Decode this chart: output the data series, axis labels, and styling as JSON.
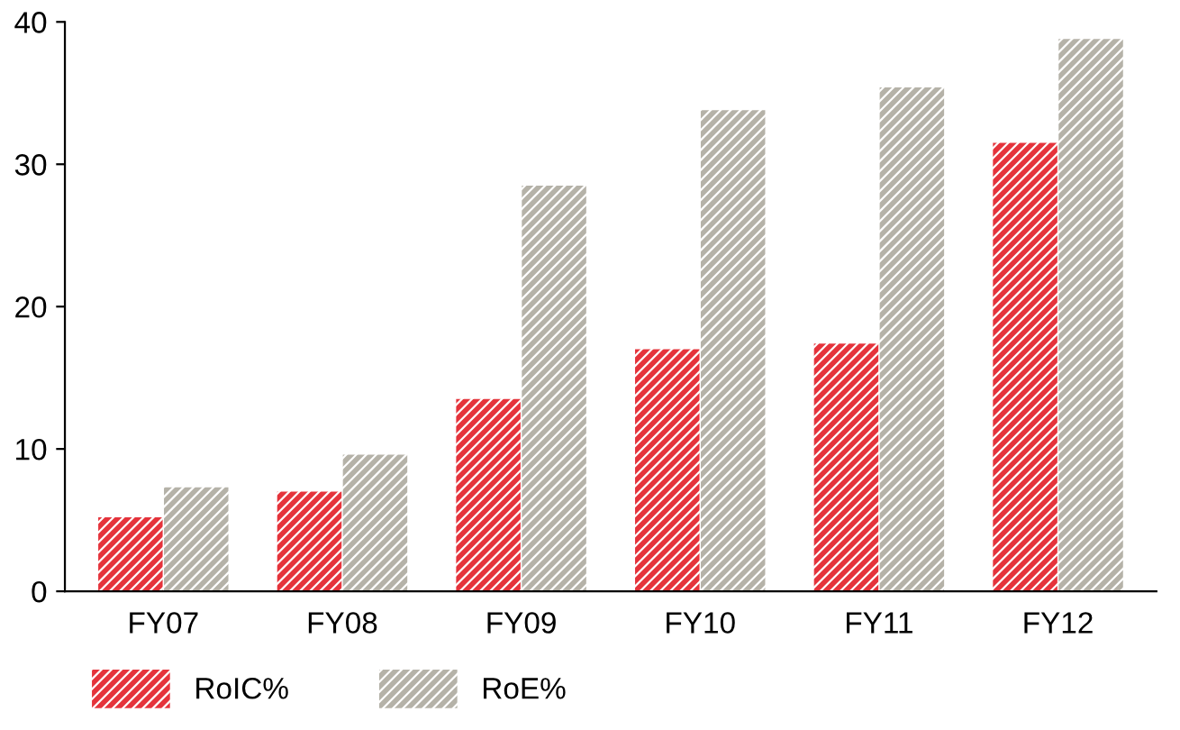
{
  "chart_data": {
    "type": "bar",
    "categories": [
      "FY07",
      "FY08",
      "FY09",
      "FY10",
      "FY11",
      "FY12"
    ],
    "series": [
      {
        "name": "RoIC%",
        "color": "#e5333b",
        "values": [
          5.2,
          7.0,
          13.5,
          17.0,
          17.4,
          31.5
        ]
      },
      {
        "name": "RoE%",
        "color": "#b5b2a8",
        "values": [
          7.3,
          9.6,
          28.5,
          33.8,
          35.4,
          38.8
        ]
      }
    ],
    "ylim": [
      0,
      40
    ],
    "yticks": [
      0,
      10,
      20,
      30,
      40
    ],
    "grid": false,
    "legend": "bottom left"
  }
}
